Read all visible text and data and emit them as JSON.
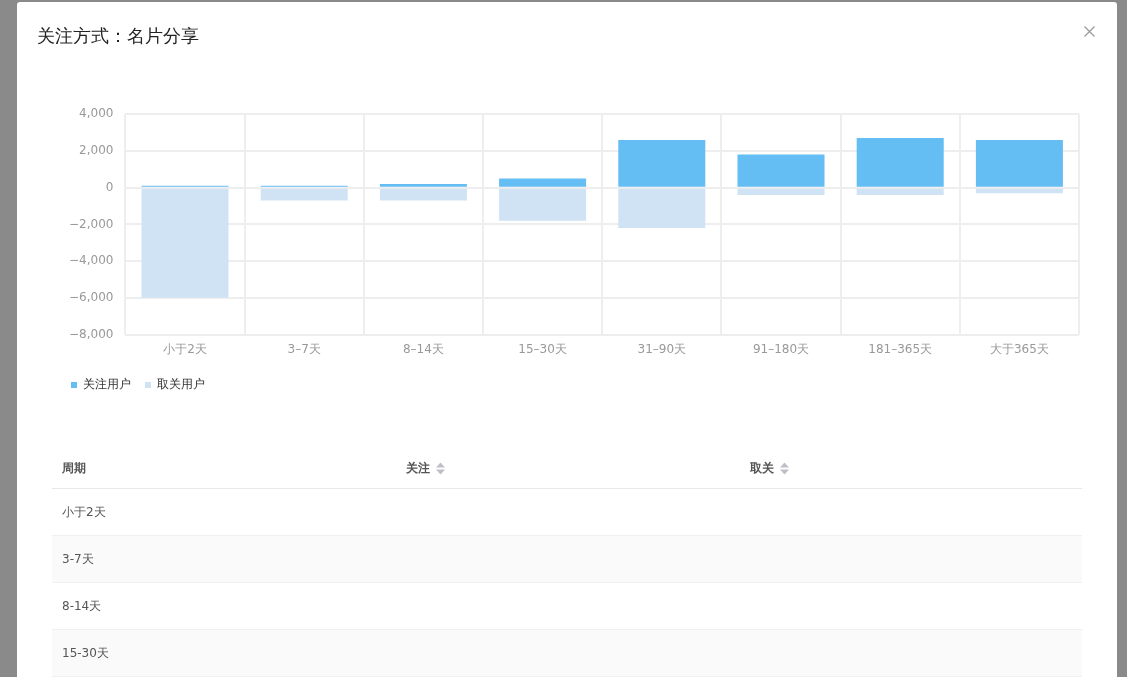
{
  "chart_data": {
    "type": "bar",
    "title": "关注方式：名片分享",
    "categories": [
      "小于2天",
      "3–7天",
      "8–14天",
      "15–30天",
      "31–90天",
      "91–180天",
      "181–365天",
      "大于365天"
    ],
    "series": [
      {
        "name": "关注用户",
        "color": "#64bdf3",
        "values": [
          100,
          100,
          200,
          500,
          2600,
          1800,
          2700,
          2600
        ]
      },
      {
        "name": "取关用户",
        "color": "#d0e3f5",
        "values": [
          -6000,
          -700,
          -700,
          -1800,
          -2200,
          -400,
          -400,
          -300
        ]
      }
    ],
    "stacked": true,
    "ylim": [
      -8000,
      4000
    ],
    "yticks": [
      {
        "value": -8000,
        "label": "−8,000"
      },
      {
        "value": -6000,
        "label": "−6,000"
      },
      {
        "value": -4000,
        "label": "−4,000"
      },
      {
        "value": -2000,
        "label": "−2,000"
      },
      0,
      {
        "value": 2000,
        "label": "2,000"
      },
      {
        "value": 4000,
        "label": "4,000"
      }
    ],
    "grid": true,
    "legend": "bottom left",
    "annotations": [
      "周期",
      "关注",
      "取关",
      "小于2天",
      "3-7天",
      "8-14天",
      "15-30天"
    ]
  }
}
